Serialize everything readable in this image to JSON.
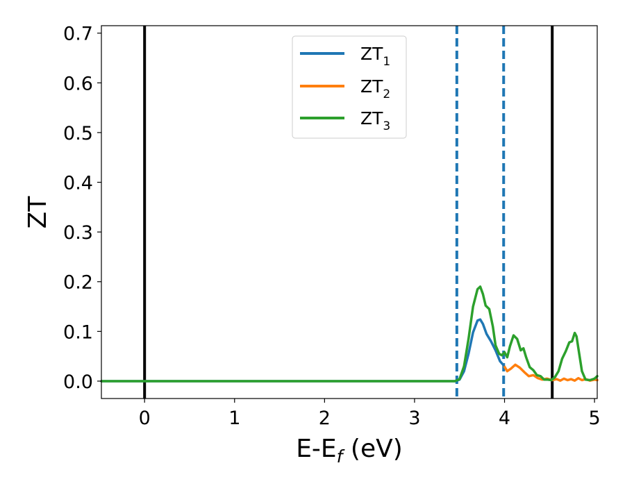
{
  "chart_data": {
    "type": "line",
    "xlabel": "E-E",
    "xlabel_sub": "f",
    "xlabel_unit": " (eV)",
    "ylabel": "ZT",
    "xlim": [
      -0.48,
      5.03
    ],
    "ylim": [
      -0.035,
      0.715
    ],
    "xticks": [
      0,
      1,
      2,
      3,
      4,
      5
    ],
    "xtick_labels": [
      "0",
      "1",
      "2",
      "3",
      "4",
      "5"
    ],
    "yticks": [
      0.0,
      0.1,
      0.2,
      0.3,
      0.4,
      0.5,
      0.6,
      0.7
    ],
    "ytick_labels": [
      "0.0",
      "0.1",
      "0.2",
      "0.3",
      "0.4",
      "0.5",
      "0.6",
      "0.7"
    ],
    "grid": false,
    "legend_position": "top-center",
    "vlines": [
      {
        "x": 0.0,
        "color": "#000000",
        "style": "solid"
      },
      {
        "x": 4.53,
        "color": "#000000",
        "style": "solid"
      },
      {
        "x": 3.47,
        "color": "#1f77b4",
        "style": "dashed"
      },
      {
        "x": 3.99,
        "color": "#1f77b4",
        "style": "dashed"
      }
    ],
    "series": [
      {
        "name": "ZT",
        "name_sub": "1",
        "color": "#1f77b4",
        "x": [
          -0.48,
          3.45,
          3.5,
          3.55,
          3.6,
          3.65,
          3.7,
          3.73,
          3.76,
          3.8,
          3.85,
          3.9,
          3.95,
          3.99
        ],
        "y": [
          0.0,
          0.0,
          0.003,
          0.02,
          0.055,
          0.098,
          0.122,
          0.124,
          0.115,
          0.095,
          0.08,
          0.062,
          0.04,
          0.032
        ]
      },
      {
        "name": "ZT",
        "name_sub": "2",
        "color": "#ff7f0e",
        "x": [
          3.99,
          4.03,
          4.07,
          4.12,
          4.17,
          4.22,
          4.27,
          4.32,
          4.37,
          4.42,
          4.47,
          4.53,
          4.58,
          4.62,
          4.66,
          4.7,
          4.74,
          4.78,
          4.82,
          4.86,
          4.9,
          4.95,
          5.0,
          5.03
        ],
        "y": [
          0.032,
          0.02,
          0.025,
          0.033,
          0.027,
          0.018,
          0.01,
          0.012,
          0.006,
          0.003,
          0.005,
          0.002,
          0.004,
          0.001,
          0.005,
          0.002,
          0.004,
          0.001,
          0.006,
          0.002,
          0.004,
          0.001,
          0.003,
          0.002
        ]
      },
      {
        "name": "ZT",
        "name_sub": "3",
        "color": "#2ca02c",
        "x": [
          -0.48,
          3.45,
          3.5,
          3.55,
          3.6,
          3.65,
          3.7,
          3.73,
          3.76,
          3.79,
          3.83,
          3.87,
          3.9,
          3.94,
          3.97,
          4.0,
          4.03,
          4.06,
          4.1,
          4.14,
          4.18,
          4.21,
          4.24,
          4.28,
          4.32,
          4.36,
          4.4,
          4.44,
          4.48,
          4.52,
          4.56,
          4.6,
          4.64,
          4.68,
          4.72,
          4.75,
          4.78,
          4.8,
          4.83,
          4.86,
          4.9,
          4.95,
          5.0,
          5.03
        ],
        "y": [
          0.0,
          0.0,
          0.004,
          0.03,
          0.085,
          0.15,
          0.185,
          0.19,
          0.175,
          0.152,
          0.145,
          0.11,
          0.072,
          0.055,
          0.052,
          0.058,
          0.048,
          0.07,
          0.092,
          0.085,
          0.062,
          0.066,
          0.048,
          0.028,
          0.022,
          0.012,
          0.01,
          0.003,
          0.003,
          0.002,
          0.008,
          0.02,
          0.045,
          0.06,
          0.078,
          0.08,
          0.097,
          0.09,
          0.055,
          0.02,
          0.003,
          0.002,
          0.005,
          0.01
        ]
      }
    ]
  }
}
